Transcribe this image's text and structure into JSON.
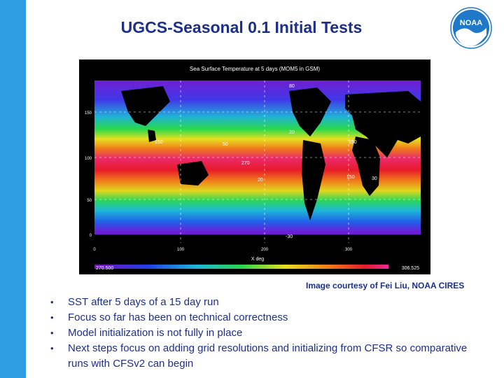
{
  "slide": {
    "title": "UGCS-Seasonal 0.1 Initial Tests",
    "logo_text": "NOAA",
    "credit": "Image courtesy of Fei Liu, NOAA CIRES",
    "bullets": [
      "SST after 5 days of a 15 day run",
      "Focus so far has been on technical correctness",
      "Model initialization is not fully in place",
      "Next steps focus on adding grid resolutions and initializing from CFSR so comparative runs with CFSv2 can begin"
    ]
  },
  "figure": {
    "title": "Sea Surface Temperature at 5 days (MOM5 in GSM)",
    "xlabel": "X deg",
    "x_ticks": [
      "0",
      "100",
      "200",
      "300"
    ],
    "y_ticks": [
      "150",
      "100",
      "50",
      "0"
    ],
    "contour_labels": [
      "80",
      "150",
      "150",
      "50",
      "270",
      "20",
      "150",
      "30",
      "20",
      "-30"
    ],
    "colorbar_min": "270.500",
    "colorbar_max": "306.525"
  },
  "colors": {
    "accent_bar": "#2e9fe3",
    "title_color": "#1c2f8c",
    "logo_blue": "#1f78c8"
  },
  "icons": {
    "logo": "noaa-logo"
  }
}
